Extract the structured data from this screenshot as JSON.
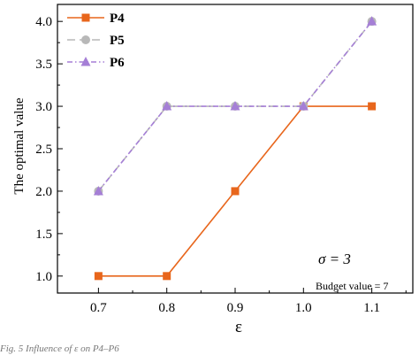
{
  "chart_data": {
    "type": "line",
    "xlabel": "ε",
    "ylabel": "The optimal value",
    "x": [
      0.7,
      0.8,
      0.9,
      1.0,
      1.1
    ],
    "xlim": [
      0.64,
      1.16
    ],
    "ylim": [
      0.8,
      4.2
    ],
    "xticks": [
      "0.7",
      "0.8",
      "0.9",
      "1.0",
      "1.1"
    ],
    "yticks": [
      "1.0",
      "1.5",
      "2.0",
      "2.5",
      "3.0",
      "3.5",
      "4.0"
    ],
    "grid": false,
    "legend_position": "top-left",
    "series": [
      {
        "name": "P4",
        "values": [
          1,
          1,
          2,
          3,
          3
        ],
        "color": "#E8661C",
        "marker": "square",
        "dash": "solid"
      },
      {
        "name": "P5",
        "values": [
          2,
          3,
          3,
          3,
          4
        ],
        "color": "#B8B8B8",
        "marker": "circle",
        "dash": "dashed"
      },
      {
        "name": "P6",
        "values": [
          2,
          3,
          3,
          3,
          4
        ],
        "color": "#A57FD6",
        "marker": "triangle",
        "dash": "dashdot"
      }
    ],
    "annotations": [
      "σ = 3",
      "Budget value = 7"
    ]
  },
  "caption": "Fig. 5    Influence of ε on P4–P6"
}
